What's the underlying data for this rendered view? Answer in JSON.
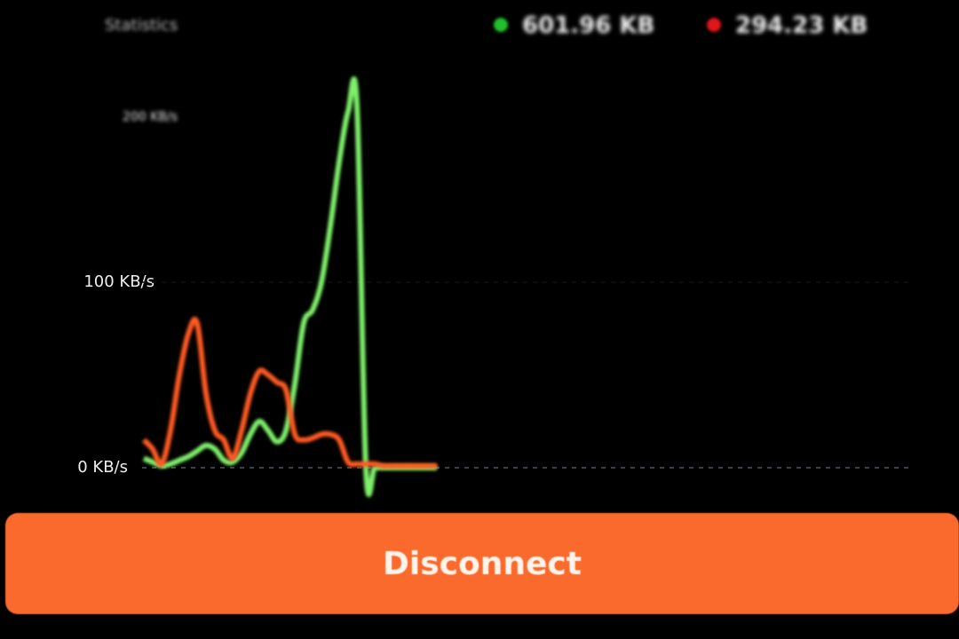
{
  "header": {
    "title": "Statistics"
  },
  "stats": {
    "download": {
      "value": "601.96 KB",
      "color": "#22c02a"
    },
    "upload": {
      "value": "294.23 KB",
      "color": "#e0161a"
    }
  },
  "chart_data": {
    "type": "line",
    "ylabel": "",
    "xlabel": "",
    "ylim": [
      0,
      200
    ],
    "y_tick_labels": [
      "0 KB/s",
      "100 KB/s",
      "200 KB/s"
    ],
    "y_ticks": [
      0,
      100,
      200
    ],
    "grid": "dashed baseline",
    "x": [
      0,
      1,
      2,
      3,
      4,
      5,
      6,
      7,
      8,
      9,
      10,
      11,
      12,
      13,
      14,
      15,
      16,
      17,
      18,
      19,
      20,
      21,
      22,
      23,
      24,
      25,
      26,
      27,
      28,
      29,
      30,
      31,
      32,
      33
    ],
    "series": [
      {
        "color": "#7ef06a",
        "values": [
          5,
          3,
          1,
          2,
          4,
          6,
          9,
          12,
          10,
          4,
          3,
          8,
          18,
          25,
          20,
          14,
          20,
          45,
          78,
          85,
          100,
          130,
          165,
          192,
          195,
          0,
          0,
          0,
          0,
          0,
          0,
          0,
          0,
          0
        ]
      },
      {
        "color": "#ff5a24",
        "values": [
          15,
          10,
          2,
          20,
          50,
          72,
          78,
          40,
          20,
          15,
          5,
          20,
          40,
          52,
          50,
          46,
          42,
          18,
          15,
          16,
          18,
          18,
          15,
          3,
          2,
          2,
          2,
          1,
          1,
          1,
          1,
          1,
          1,
          1
        ]
      }
    ]
  },
  "button": {
    "label": "Disconnect",
    "color": "#fb6a2d"
  }
}
